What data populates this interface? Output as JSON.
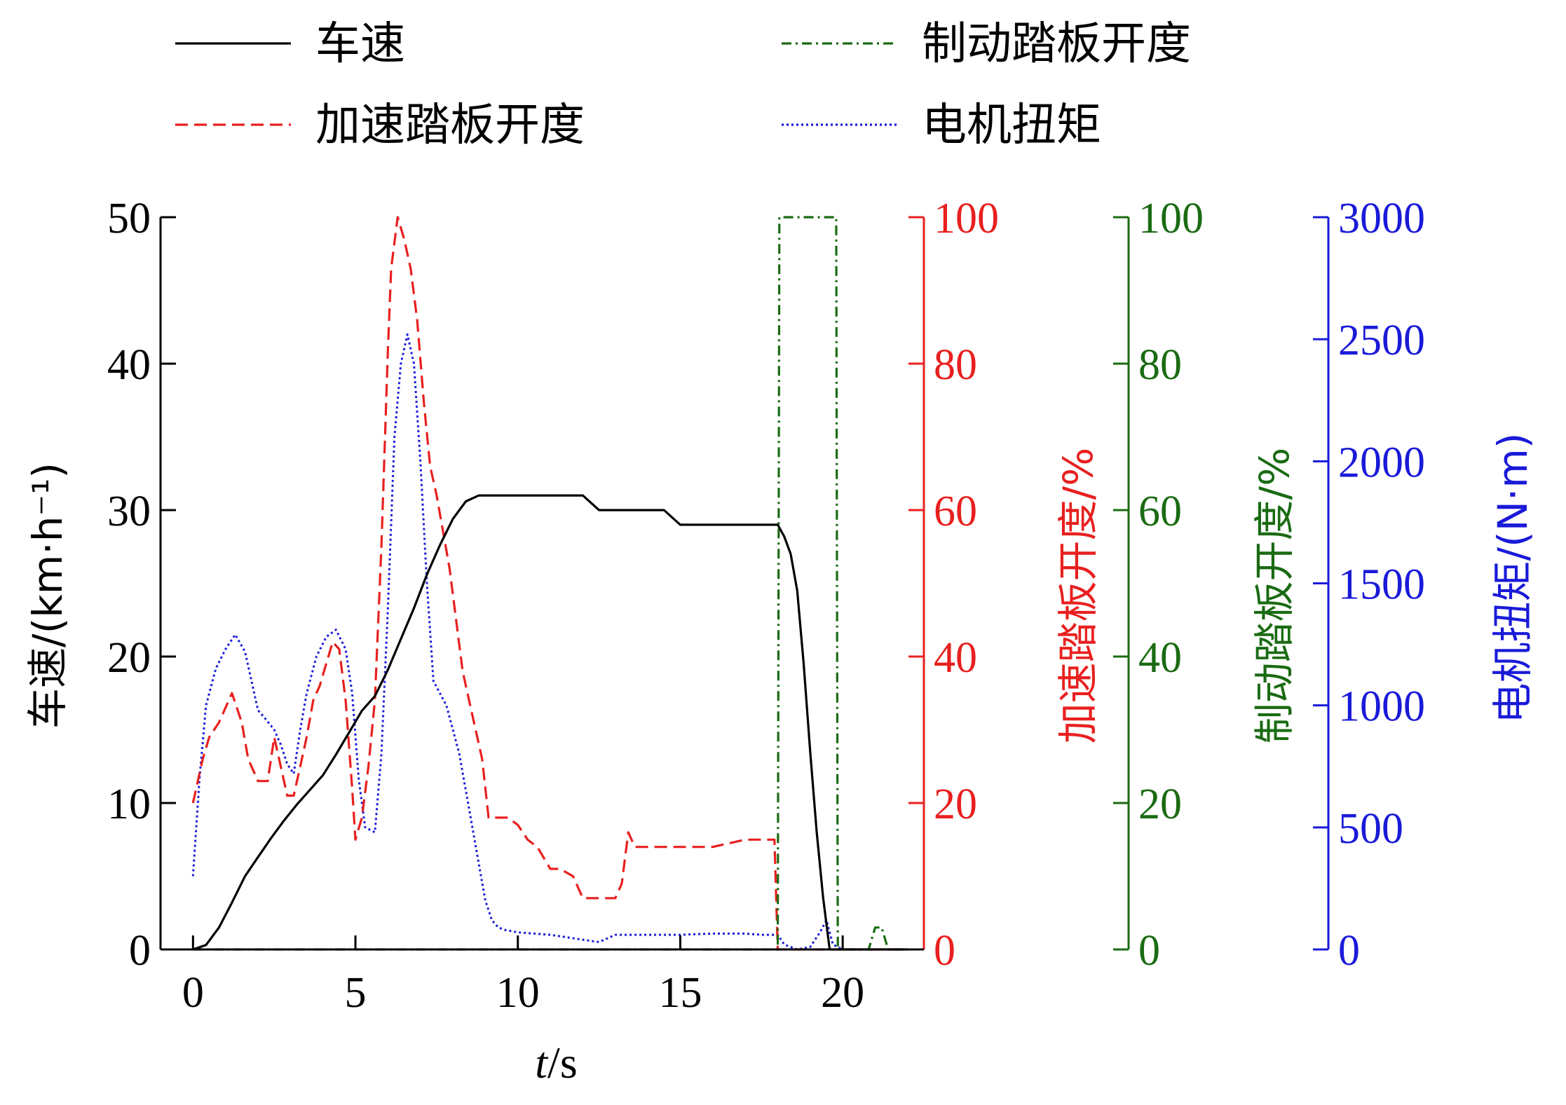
{
  "chart_data": {
    "type": "line",
    "legend_placement": "top",
    "grid": false,
    "xlabel": "t/s",
    "xlabel_italic": "t",
    "xlabel_rest": "/s",
    "xlim": [
      -1,
      22.5
    ],
    "xticks": [
      0,
      5,
      10,
      15,
      20
    ],
    "axes": [
      {
        "id": "speed",
        "label": "车速/(km·h⁻¹)",
        "color": "#000000",
        "lim": [
          0,
          50
        ],
        "ticks": [
          0,
          10,
          20,
          30,
          40,
          50
        ]
      },
      {
        "id": "accel",
        "label": "加速踏板开度/%",
        "color": "#e8201f",
        "lim": [
          0,
          100
        ],
        "ticks": [
          0,
          20,
          40,
          60,
          80,
          100
        ]
      },
      {
        "id": "brake",
        "label": "制动踏板开度/%",
        "color": "#1a6b12",
        "lim": [
          0,
          100
        ],
        "ticks": [
          0,
          20,
          40,
          60,
          80,
          100
        ]
      },
      {
        "id": "torque",
        "label": "电机扭矩/(N·m)",
        "color": "#1a1ad9",
        "lim": [
          0,
          3000
        ],
        "ticks": [
          0,
          500,
          1000,
          1500,
          2000,
          2500,
          3000
        ]
      }
    ],
    "series": [
      {
        "name": "车速",
        "axis": "speed",
        "color": "#000000",
        "dash": "",
        "x": [
          0,
          0.4,
          0.8,
          1.2,
          1.6,
          2.0,
          2.4,
          2.8,
          3.2,
          3.6,
          4.0,
          4.4,
          4.8,
          5.2,
          5.6,
          6.0,
          6.4,
          6.8,
          7.2,
          7.6,
          8.0,
          8.4,
          8.8,
          10,
          11,
          12,
          12.5,
          13,
          14,
          14.5,
          15,
          16,
          17,
          17.5,
          18,
          18.2,
          18.4,
          18.6,
          18.8,
          19.0,
          19.2,
          19.4,
          19.6,
          20,
          21,
          22
        ],
        "y": [
          0,
          0.3,
          1.5,
          3.2,
          5.0,
          6.3,
          7.6,
          8.8,
          9.9,
          10.9,
          11.9,
          13.3,
          14.8,
          16.3,
          17.3,
          19.1,
          21.2,
          23.3,
          25.6,
          27.6,
          29.4,
          30.6,
          31.0,
          31.0,
          31.0,
          31.0,
          30.0,
          30.0,
          30.0,
          30.0,
          29.0,
          29.0,
          29.0,
          29.0,
          29.0,
          28.2,
          27.0,
          24.5,
          19.5,
          13.5,
          8.0,
          3.5,
          0,
          0,
          0,
          0
        ]
      },
      {
        "name": "加速踏板开度",
        "axis": "accel",
        "color": "#e8201f",
        "dash": "18,9",
        "x": [
          0,
          0.3,
          0.5,
          0.8,
          1.0,
          1.2,
          1.5,
          1.7,
          2.0,
          2.3,
          2.5,
          2.7,
          2.9,
          3.1,
          3.3,
          3.5,
          3.7,
          3.9,
          4.1,
          4.3,
          4.5,
          4.7,
          4.9,
          5.0,
          5.2,
          5.4,
          5.6,
          5.8,
          6.0,
          6.1,
          6.3,
          6.5,
          6.7,
          6.9,
          7.1,
          7.3,
          7.5,
          7.7,
          7.9,
          8.1,
          8.3,
          8.5,
          8.7,
          8.9,
          9.1,
          9.3,
          9.5,
          9.7,
          10,
          10.3,
          10.6,
          11,
          11.3,
          11.7,
          12,
          12.5,
          13,
          13.2,
          13.4,
          13.6,
          14,
          15,
          16,
          17,
          17.5,
          17.9,
          18.0,
          19,
          20,
          21,
          22
        ],
        "y": [
          20,
          26,
          29,
          31,
          33,
          35,
          31,
          26,
          23,
          23,
          29,
          25,
          21,
          21,
          25,
          29,
          34,
          36,
          39,
          42,
          41,
          34,
          22,
          15,
          18,
          25,
          34,
          55,
          82,
          93,
          100,
          97,
          93,
          86,
          75,
          66,
          62,
          57,
          52,
          45,
          38,
          34,
          30,
          26,
          18,
          18,
          18,
          18,
          17,
          15,
          14,
          11,
          11,
          10,
          7,
          7,
          7,
          9,
          16,
          14,
          14,
          14,
          14,
          15,
          15,
          15,
          0,
          0,
          0,
          0,
          0
        ]
      },
      {
        "name": "制动踏板开度",
        "axis": "brake",
        "color": "#1a6b12",
        "dash": "14,6,3,6",
        "x": [
          0,
          18.0,
          18.05,
          18.1,
          19.8,
          19.85,
          20,
          20.8,
          21.0,
          21.2,
          21.4,
          22
        ],
        "y": [
          0,
          0,
          100,
          100,
          100,
          0,
          0,
          0,
          3,
          3,
          0,
          0
        ]
      },
      {
        "name": "电机扭矩",
        "axis": "torque",
        "color": "#1a1ad9",
        "dash": "3,4",
        "x": [
          0,
          0.2,
          0.4,
          0.7,
          1.0,
          1.3,
          1.6,
          1.8,
          2.0,
          2.2,
          2.5,
          2.7,
          2.9,
          3.1,
          3.3,
          3.5,
          3.8,
          4.1,
          4.4,
          4.7,
          4.9,
          5.1,
          5.3,
          5.6,
          5.8,
          6.0,
          6.2,
          6.4,
          6.6,
          6.8,
          7.0,
          7.2,
          7.4,
          7.6,
          7.8,
          8.0,
          8.2,
          8.4,
          8.6,
          8.8,
          9.0,
          9.2,
          9.4,
          9.6,
          10,
          11,
          12,
          12.5,
          13,
          14,
          15,
          16,
          17,
          17.5,
          18.0,
          18.2,
          18.6,
          19.0,
          19.3,
          19.5,
          19.7,
          20,
          21,
          22
        ],
        "y": [
          300,
          700,
          1000,
          1150,
          1230,
          1290,
          1220,
          1100,
          980,
          950,
          900,
          840,
          760,
          720,
          900,
          1050,
          1200,
          1280,
          1310,
          1230,
          1050,
          700,
          500,
          480,
          800,
          1400,
          2100,
          2400,
          2520,
          2400,
          2000,
          1500,
          1100,
          1050,
          1000,
          900,
          800,
          650,
          500,
          350,
          200,
          120,
          90,
          80,
          70,
          60,
          40,
          30,
          60,
          60,
          60,
          65,
          65,
          60,
          60,
          20,
          0,
          10,
          70,
          120,
          20,
          0,
          0,
          0
        ]
      }
    ]
  }
}
